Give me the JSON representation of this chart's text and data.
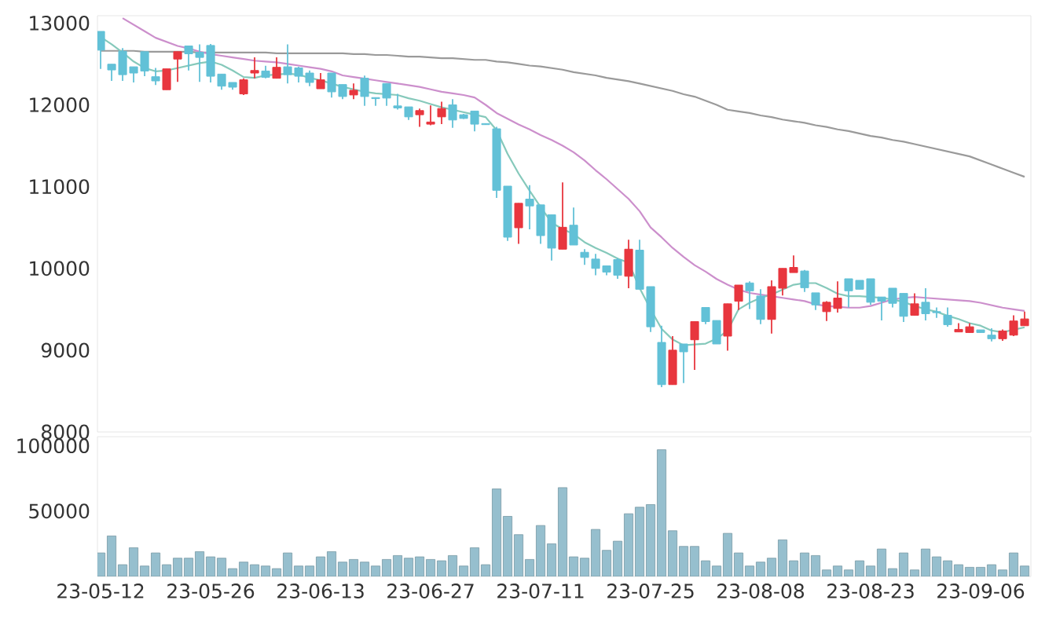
{
  "chart_data": [
    {
      "type": "candlestick",
      "tick_labels": "y",
      "categories": [
        null,
        null,
        null,
        null,
        null,
        null,
        null,
        null,
        null,
        null,
        null,
        null,
        null,
        null,
        null,
        null,
        null,
        null,
        null,
        null,
        null,
        null,
        null,
        null,
        null,
        null,
        null,
        null,
        null,
        null,
        null,
        null,
        null,
        null,
        null,
        null,
        null,
        null,
        null,
        null,
        null,
        null,
        null,
        null,
        null,
        null,
        null,
        null,
        null,
        null,
        null,
        null,
        null,
        null,
        null,
        null,
        null,
        null,
        null,
        null,
        null,
        null,
        null,
        null,
        null,
        null,
        null,
        null,
        null,
        null,
        null,
        null,
        null,
        null,
        null,
        null,
        null,
        null,
        null,
        null,
        null,
        null,
        null,
        null,
        null
      ],
      "ylim": [
        8000,
        13090
      ],
      "yticks": [
        8000,
        9000,
        10000,
        11000,
        12000,
        13000
      ],
      "ohlc": [
        [
          12898,
          12898,
          12440,
          12669
        ],
        [
          12497,
          12497,
          12293,
          12427
        ],
        [
          12656,
          12694,
          12293,
          12369
        ],
        [
          12465,
          12465,
          12274,
          12389
        ],
        [
          12650,
          12650,
          12350,
          12414
        ],
        [
          12344,
          12452,
          12242,
          12293
        ],
        [
          12185,
          12440,
          12185,
          12440
        ],
        [
          12560,
          12650,
          12280,
          12650
        ],
        [
          12720,
          12720,
          12420,
          12624
        ],
        [
          12643,
          12739,
          12280,
          12580
        ],
        [
          12726,
          12745,
          12274,
          12350
        ],
        [
          12376,
          12376,
          12185,
          12229
        ],
        [
          12274,
          12274,
          12185,
          12216
        ],
        [
          12134,
          12325,
          12121,
          12306
        ],
        [
          12389,
          12580,
          12325,
          12420
        ],
        [
          12414,
          12478,
          12325,
          12337
        ],
        [
          12325,
          12580,
          12325,
          12459
        ],
        [
          12465,
          12739,
          12261,
          12369
        ],
        [
          12452,
          12465,
          12274,
          12350
        ],
        [
          12389,
          12420,
          12229,
          12274
        ],
        [
          12197,
          12389,
          12197,
          12306
        ],
        [
          12389,
          12389,
          12089,
          12159
        ],
        [
          12248,
          12248,
          12070,
          12102
        ],
        [
          12121,
          12261,
          12070,
          12178
        ],
        [
          12325,
          12357,
          11987,
          12102
        ],
        [
          12089,
          12089,
          11987,
          12076
        ],
        [
          12261,
          12261,
          11987,
          12083
        ],
        [
          11987,
          12134,
          11943,
          11962
        ],
        [
          11975,
          11975,
          11815,
          11853
        ],
        [
          11879,
          11955,
          11732,
          11930
        ],
        [
          11764,
          11994,
          11751,
          11790
        ],
        [
          11853,
          12038,
          11764,
          11955
        ],
        [
          12000,
          12070,
          11720,
          11815
        ],
        [
          11879,
          11890,
          11828,
          11834
        ],
        [
          11924,
          11924,
          11675,
          11764
        ],
        [
          11771,
          11771,
          11758,
          11758
        ],
        [
          11707,
          11732,
          10861,
          10955
        ],
        [
          11006,
          11006,
          10337,
          10382
        ],
        [
          10497,
          10796,
          10299,
          10796
        ],
        [
          10847,
          11019,
          10478,
          10764
        ],
        [
          10777,
          10777,
          10299,
          10401
        ],
        [
          10656,
          10656,
          10095,
          10248
        ],
        [
          10235,
          11051,
          10235,
          10503
        ],
        [
          10528,
          10745,
          10286,
          10286
        ],
        [
          10197,
          10235,
          10044,
          10134
        ],
        [
          10114,
          10178,
          9917,
          10000
        ],
        [
          10031,
          10031,
          9917,
          9955
        ],
        [
          10108,
          10127,
          9872,
          9917
        ],
        [
          9904,
          10350,
          9758,
          10235
        ],
        [
          10223,
          10350,
          9745,
          9745
        ],
        [
          9777,
          9777,
          9222,
          9286
        ],
        [
          9095,
          9299,
          8547,
          8579
        ],
        [
          8579,
          9172,
          8579,
          9000
        ],
        [
          9076,
          9076,
          8598,
          8980
        ],
        [
          9127,
          9350,
          8758,
          9350
        ],
        [
          9522,
          9522,
          9318,
          9350
        ],
        [
          9363,
          9363,
          9076,
          9076
        ],
        [
          9172,
          9567,
          8994,
          9567
        ],
        [
          9599,
          9796,
          9490,
          9796
        ],
        [
          9822,
          9841,
          9503,
          9726
        ],
        [
          9662,
          9745,
          9318,
          9376
        ],
        [
          9376,
          9853,
          9204,
          9777
        ],
        [
          9758,
          10000,
          9669,
          10000
        ],
        [
          9949,
          10159,
          9949,
          10012
        ],
        [
          9968,
          9981,
          9713,
          9764
        ],
        [
          9701,
          9701,
          9490,
          9554
        ],
        [
          9471,
          9599,
          9357,
          9586
        ],
        [
          9510,
          9841,
          9459,
          9637
        ],
        [
          9873,
          9873,
          9522,
          9726
        ],
        [
          9854,
          9854,
          9745,
          9745
        ],
        [
          9873,
          9873,
          9554,
          9586
        ],
        [
          9650,
          9650,
          9363,
          9599
        ],
        [
          9758,
          9758,
          9522,
          9573
        ],
        [
          9694,
          9694,
          9344,
          9414
        ],
        [
          9427,
          9694,
          9427,
          9567
        ],
        [
          9586,
          9758,
          9363,
          9446
        ],
        [
          9471,
          9522,
          9395,
          9459
        ],
        [
          9427,
          9522,
          9286,
          9312
        ],
        [
          9223,
          9331,
          9223,
          9254
        ],
        [
          9216,
          9331,
          9216,
          9286
        ],
        [
          9248,
          9248,
          9216,
          9216
        ],
        [
          9184,
          9267,
          9108,
          9140
        ],
        [
          9140,
          9254,
          9114,
          9235
        ],
        [
          9184,
          9427,
          9172,
          9357
        ],
        [
          9299,
          9471,
          9299,
          9382
        ]
      ],
      "colors": [
        "#62c1d7",
        "#62c1d7",
        "#62c1d7",
        "#62c1d7",
        "#62c1d7",
        "#62c1d7",
        "#e8363e",
        "#e8363e",
        "#62c1d7",
        "#62c1d7",
        "#62c1d7",
        "#62c1d7",
        "#62c1d7",
        "#e8363e",
        "#e8363e",
        "#62c1d7",
        "#e8363e",
        "#62c1d7",
        "#62c1d7",
        "#62c1d7",
        "#e8363e",
        "#62c1d7",
        "#62c1d7",
        "#e8363e",
        "#62c1d7",
        "#62c1d7",
        "#62c1d7",
        "#62c1d7",
        "#62c1d7",
        "#e8363e",
        "#e8363e",
        "#e8363e",
        "#62c1d7",
        "#62c1d7",
        "#62c1d7",
        "#62c1d7",
        "#62c1d7",
        "#62c1d7",
        "#e8363e",
        "#62c1d7",
        "#62c1d7",
        "#62c1d7",
        "#e8363e",
        "#62c1d7",
        "#62c1d7",
        "#62c1d7",
        "#62c1d7",
        "#62c1d7",
        "#e8363e",
        "#62c1d7",
        "#62c1d7",
        "#62c1d7",
        "#e8363e",
        "#62c1d7",
        "#e8363e",
        "#62c1d7",
        "#62c1d7",
        "#e8363e",
        "#e8363e",
        "#62c1d7",
        "#62c1d7",
        "#e8363e",
        "#e8363e",
        "#e8363e",
        "#62c1d7",
        "#62c1d7",
        "#e8363e",
        "#e8363e",
        "#62c1d7",
        "#62c1d7",
        "#62c1d7",
        "#62c1d7",
        "#62c1d7",
        "#62c1d7",
        "#e8363e",
        "#62c1d7",
        "#62c1d7",
        "#62c1d7",
        "#e8363e",
        "#e8363e",
        "#62c1d7",
        "#62c1d7",
        "#e8363e",
        "#e8363e",
        "#e8363e"
      ],
      "series": [
        {
          "type": "line",
          "color": "#9a9a9a",
          "values": [
            12660,
            12660,
            12660,
            12660,
            12650,
            12650,
            12650,
            12650,
            12650,
            12640,
            12640,
            12640,
            12640,
            12640,
            12640,
            12640,
            12630,
            12630,
            12630,
            12630,
            12630,
            12630,
            12630,
            12620,
            12620,
            12610,
            12610,
            12600,
            12590,
            12590,
            12580,
            12570,
            12570,
            12560,
            12550,
            12550,
            12530,
            12520,
            12500,
            12480,
            12470,
            12450,
            12430,
            12400,
            12380,
            12360,
            12330,
            12310,
            12290,
            12260,
            12230,
            12200,
            12170,
            12130,
            12100,
            12050,
            12000,
            11940,
            11920,
            11900,
            11870,
            11850,
            11820,
            11800,
            11780,
            11750,
            11730,
            11700,
            11680,
            11650,
            11620,
            11600,
            11570,
            11550,
            11520,
            11490,
            11460,
            11430,
            11400,
            11370,
            11320,
            11270,
            11220,
            11170,
            11120
          ]
        },
        {
          "type": "line",
          "color": "#cc8fcc",
          "values": [
            null,
            null,
            13060,
            12980,
            12900,
            12820,
            12770,
            12720,
            12690,
            12650,
            12620,
            12600,
            12580,
            12560,
            12540,
            12530,
            12520,
            12500,
            12480,
            12460,
            12440,
            12410,
            12360,
            12340,
            12320,
            12300,
            12280,
            12260,
            12240,
            12220,
            12190,
            12160,
            12140,
            12120,
            12090,
            12000,
            11900,
            11830,
            11760,
            11700,
            11630,
            11570,
            11500,
            11420,
            11320,
            11200,
            11090,
            10970,
            10850,
            10700,
            10500,
            10380,
            10250,
            10140,
            10040,
            9960,
            9870,
            9800,
            9740,
            9700,
            9680,
            9660,
            9640,
            9620,
            9600,
            9560,
            9540,
            9530,
            9520,
            9520,
            9540,
            9580,
            9620,
            9640,
            9650,
            9640,
            9630,
            9620,
            9610,
            9600,
            9580,
            9550,
            9520,
            9500,
            9480
          ]
        },
        {
          "type": "line",
          "color": "#86c9bb",
          "values": [
            12830,
            12740,
            12640,
            12530,
            12450,
            12410,
            12420,
            12450,
            12480,
            12510,
            12530,
            12490,
            12420,
            12340,
            12330,
            12360,
            12370,
            12380,
            12370,
            12330,
            12300,
            12260,
            12220,
            12190,
            12160,
            12140,
            12130,
            12120,
            12080,
            12050,
            12010,
            11970,
            11940,
            11910,
            11880,
            11850,
            11690,
            11400,
            11160,
            10950,
            10750,
            10560,
            10480,
            10420,
            10320,
            10250,
            10190,
            10120,
            10070,
            9760,
            9500,
            9260,
            9130,
            9060,
            9070,
            9080,
            9140,
            9240,
            9500,
            9580,
            9640,
            9680,
            9740,
            9800,
            9820,
            9820,
            9760,
            9690,
            9660,
            9660,
            9650,
            9640,
            9620,
            9590,
            9540,
            9500,
            9470,
            9420,
            9380,
            9330,
            9300,
            9240,
            9220,
            9250,
            9280
          ]
        }
      ]
    },
    {
      "type": "bar",
      "color": "#96bfce",
      "categories": [
        "23-05-12",
        null,
        null,
        null,
        null,
        null,
        null,
        null,
        null,
        null,
        "23-05-26",
        null,
        null,
        null,
        null,
        null,
        null,
        null,
        null,
        null,
        "23-06-13",
        null,
        null,
        null,
        null,
        null,
        null,
        null,
        null,
        null,
        "23-06-27",
        null,
        null,
        null,
        null,
        null,
        null,
        null,
        null,
        null,
        "23-07-11",
        null,
        null,
        null,
        null,
        null,
        null,
        null,
        null,
        null,
        "23-07-25",
        null,
        null,
        null,
        null,
        null,
        null,
        null,
        null,
        null,
        "23-08-08",
        null,
        null,
        null,
        null,
        null,
        null,
        null,
        null,
        null,
        "23-08-23",
        null,
        null,
        null,
        null,
        null,
        null,
        null,
        null,
        null,
        "23-09-06",
        null,
        null,
        null,
        null
      ],
      "ylim": [
        0,
        107000
      ],
      "yticks": [
        50000,
        100000
      ],
      "values": [
        18000,
        31000,
        9000,
        22000,
        8000,
        18000,
        9000,
        14000,
        14000,
        19000,
        15000,
        14000,
        6000,
        11000,
        9000,
        8000,
        6000,
        18000,
        8000,
        8000,
        15000,
        19000,
        11000,
        13000,
        11000,
        8000,
        13000,
        16000,
        14000,
        15000,
        13000,
        12000,
        16000,
        8000,
        22000,
        9000,
        67000,
        46000,
        32000,
        13000,
        39000,
        25000,
        68000,
        15000,
        14000,
        36000,
        20000,
        27000,
        48000,
        53000,
        55000,
        97000,
        35000,
        23000,
        23000,
        12000,
        8000,
        33000,
        18000,
        8000,
        11000,
        14000,
        28000,
        12000,
        18000,
        16000,
        5000,
        8000,
        5000,
        12000,
        8000,
        21000,
        6000,
        18000,
        5000,
        21000,
        15000,
        12000,
        9000,
        7000,
        7000,
        9000,
        5000,
        18000,
        8000
      ]
    }
  ]
}
